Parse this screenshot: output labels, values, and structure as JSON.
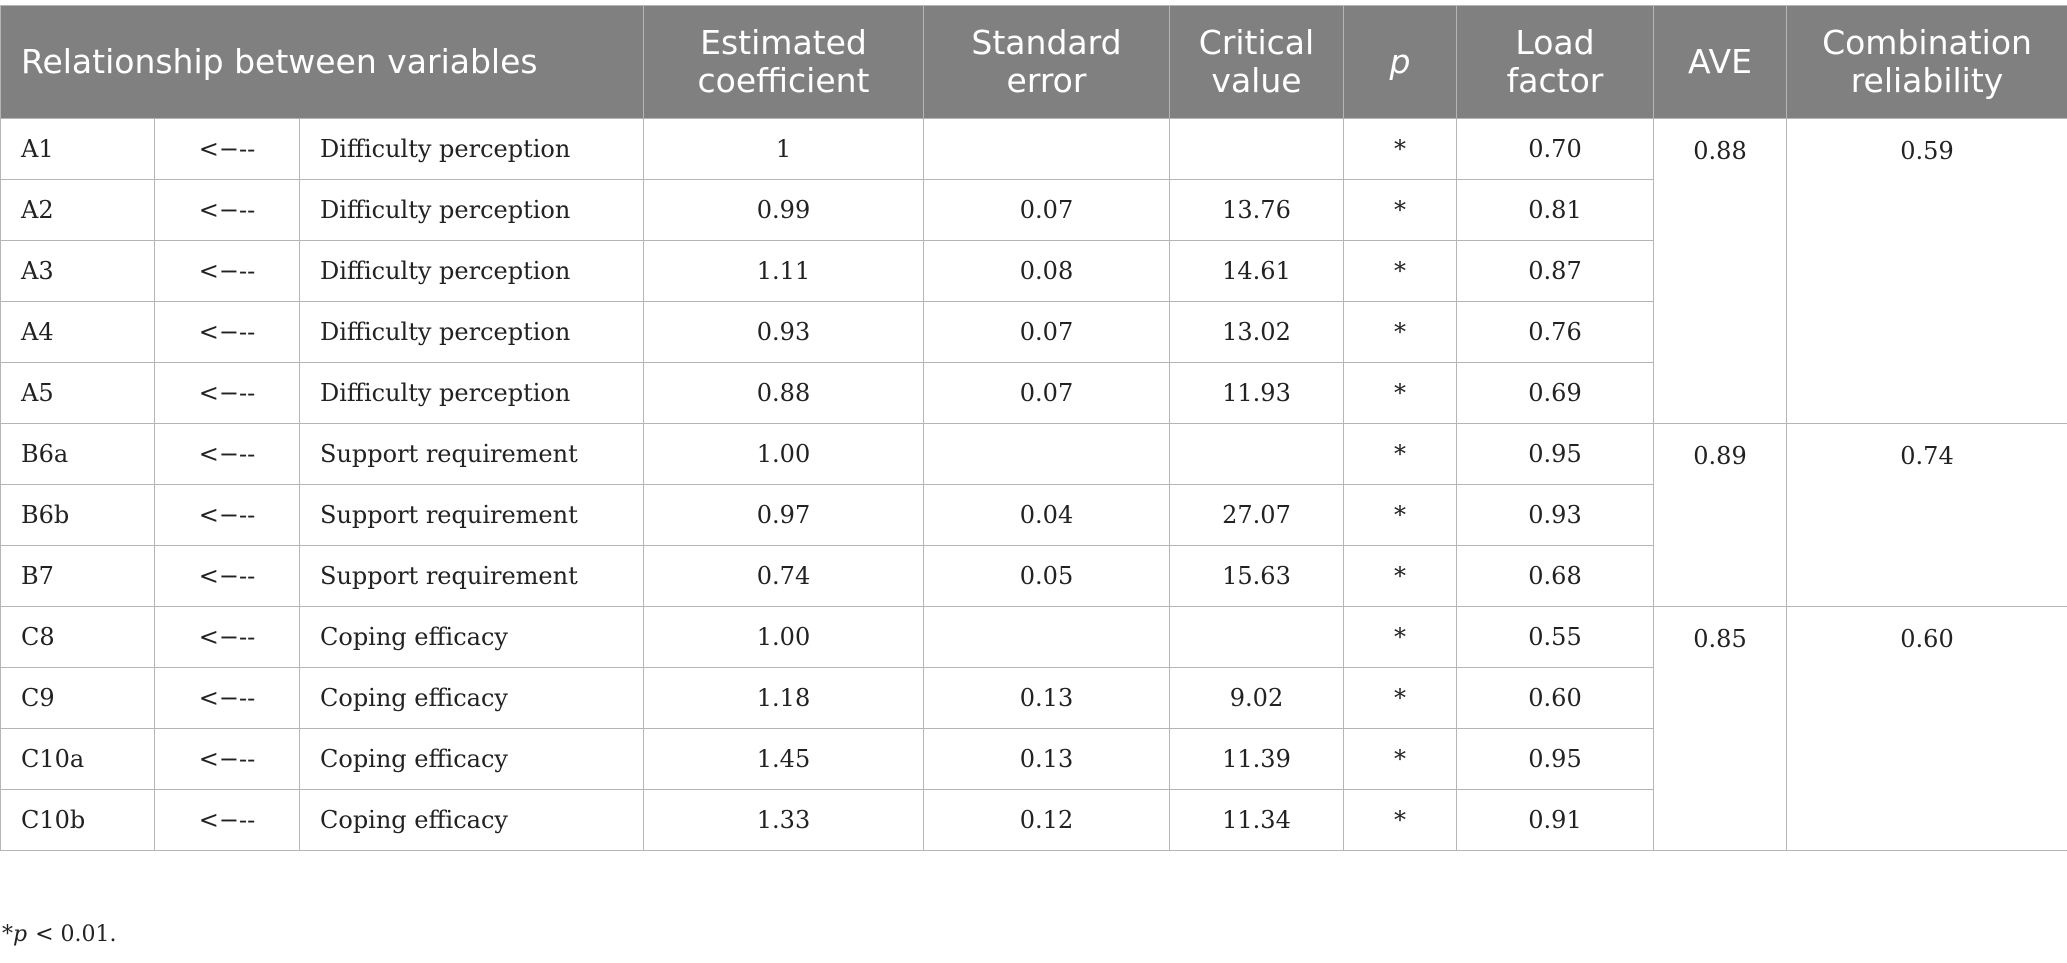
{
  "table": {
    "header": [
      "Relationship between variables",
      "Estimated coefficient",
      "Standard error",
      "Critical value",
      "p",
      "Load factor",
      "AVE",
      "Combination reliability"
    ],
    "groups": [
      {
        "ave": "0.88",
        "reliability": "0.59",
        "rows": [
          [
            "A1",
            "<−--",
            "Difficulty perception",
            "1",
            null,
            null,
            "*",
            "0.70"
          ],
          [
            "A2",
            "<−--",
            "Difficulty perception",
            "0.99",
            "0.07",
            "13.76",
            "*",
            "0.81"
          ],
          [
            "A3",
            "<−--",
            "Difficulty perception",
            "1.11",
            "0.08",
            "14.61",
            "*",
            "0.87"
          ],
          [
            "A4",
            "<−--",
            "Difficulty perception",
            "0.93",
            "0.07",
            "13.02",
            "*",
            "0.76"
          ],
          [
            "A5",
            "<−--",
            "Difficulty perception",
            "0.88",
            "0.07",
            "11.93",
            "*",
            "0.69"
          ]
        ]
      },
      {
        "ave": "0.89",
        "reliability": "0.74",
        "rows": [
          [
            "B6a",
            "<−--",
            "Support requirement",
            "1.00",
            null,
            null,
            "*",
            "0.95"
          ],
          [
            "B6b",
            "<−--",
            "Support requirement",
            "0.97",
            "0.04",
            "27.07",
            "*",
            "0.93"
          ],
          [
            "B7",
            "<−--",
            "Support requirement",
            "0.74",
            "0.05",
            "15.63",
            "*",
            "0.68"
          ]
        ]
      },
      {
        "ave": "0.85",
        "reliability": "0.60",
        "rows": [
          [
            "C8",
            "<−--",
            "Coping efficacy",
            "1.00",
            null,
            null,
            "*",
            "0.55"
          ],
          [
            "C9",
            "<−--",
            "Coping efficacy",
            "1.18",
            "0.13",
            "9.02",
            "*",
            "0.60"
          ],
          [
            "C10a",
            "<−--",
            "Coping efficacy",
            "1.45",
            "0.13",
            "11.39",
            "*",
            "0.95"
          ],
          [
            "C10b",
            "<−--",
            "Coping efficacy",
            "1.33",
            "0.12",
            "11.34",
            "*",
            "0.91"
          ]
        ]
      }
    ]
  },
  "footnote": {
    "marker": "*",
    "symbol": "p",
    "text": "< 0.01."
  }
}
